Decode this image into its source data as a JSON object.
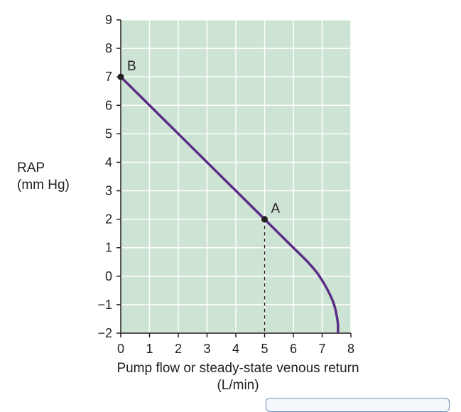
{
  "chart_data": {
    "type": "line",
    "xlabel_line1": "Pump flow or steady-state venous return",
    "xlabel_line2": "(L/min)",
    "ylabel_line1": "RAP",
    "ylabel_line2": "(mm Hg)",
    "xlim": [
      0,
      8
    ],
    "ylim": [
      -2,
      9
    ],
    "xticks": [
      0,
      1,
      2,
      3,
      4,
      5,
      6,
      7,
      8
    ],
    "yticks": [
      9,
      8,
      7,
      6,
      5,
      4,
      3,
      2,
      1,
      0,
      -1,
      -2
    ],
    "ytick_labels": [
      "9",
      "8",
      "7",
      "6",
      "5",
      "4",
      "3",
      "2",
      "1",
      "0",
      "−1",
      "−2"
    ],
    "grid": true,
    "background_color": "#cde3d3",
    "grid_color": "#ffffff",
    "line_color": "#5b2d86",
    "series": [
      {
        "x": [
          0,
          1,
          2,
          3,
          4,
          5,
          5.5,
          6,
          6.5,
          6.8,
          7.0,
          7.2,
          7.4,
          7.5,
          7.55,
          7.55
        ],
        "y": [
          7,
          6,
          5,
          4,
          3,
          2,
          1.5,
          1.0,
          0.5,
          0.15,
          -0.15,
          -0.5,
          -0.95,
          -1.35,
          -1.7,
          -2
        ]
      }
    ],
    "points": [
      {
        "label": "B",
        "x": 0,
        "y": 7
      },
      {
        "label": "A",
        "x": 5,
        "y": 2
      }
    ],
    "dashed_drop": {
      "x": 5,
      "y_from": 2,
      "y_to": -2
    }
  }
}
